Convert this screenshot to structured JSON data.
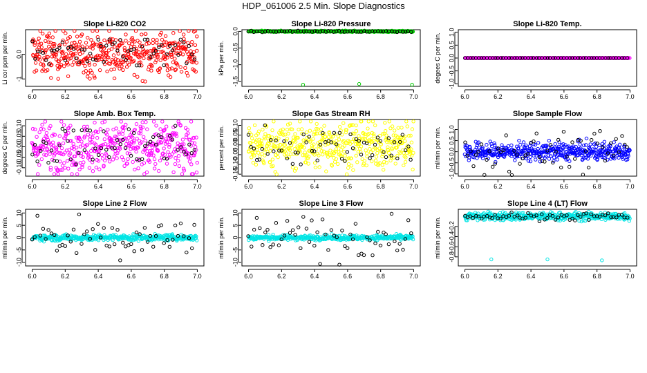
{
  "figure_title": "HDP_061006  2.5 Min. Slope Diagnostics",
  "chart_data": [
    {
      "type": "scatter",
      "title": "Slope Li-820 CO2",
      "ylabel": "Li cor ppm per min.",
      "xlim": [
        5.96,
        7.04
      ],
      "ylim": [
        -1.3,
        1.0
      ],
      "xticks": [
        6.0,
        6.2,
        6.4,
        6.6,
        6.8,
        7.0
      ],
      "yticks": [
        -1,
        0
      ],
      "ytick_labels": [
        "-1",
        "0.0"
      ],
      "series": [
        {
          "name": "main",
          "color": "#ff0000",
          "n": 460,
          "center": 0.05,
          "spread": 0.45,
          "range": [
            -1.25,
            0.95
          ]
        },
        {
          "name": "black",
          "color": "#000000",
          "n": 60,
          "center": 0.05,
          "spread": 0.35,
          "range": [
            -0.8,
            0.6
          ]
        }
      ]
    },
    {
      "type": "scatter",
      "title": "Slope Li-820 Pressure",
      "ylabel": "kPa per min.",
      "xlim": [
        5.96,
        7.04
      ],
      "ylim": [
        -1.65,
        0.05
      ],
      "xticks": [
        6.0,
        6.2,
        6.4,
        6.6,
        6.8,
        7.0
      ],
      "yticks": [
        -1.5,
        -1.0,
        -0.5,
        0.0
      ],
      "ytick_labels": [
        "-1.5",
        "-1.0",
        "-0.5",
        "0.0"
      ],
      "series": [
        {
          "name": "main",
          "color": "#00cc00",
          "n": 300,
          "center": 0.0,
          "spread": 0.01,
          "range": [
            -0.03,
            0.03
          ]
        },
        {
          "name": "black",
          "color": "#000000",
          "n": 60,
          "center": 0.0,
          "spread": 0.01,
          "range": [
            -0.03,
            0.03
          ]
        }
      ],
      "outliers": [
        {
          "x": 6.33,
          "y": -1.6,
          "color": "#00cc00"
        },
        {
          "x": 6.67,
          "y": -1.58,
          "color": "#00cc00"
        },
        {
          "x": 6.99,
          "y": -1.6,
          "color": "#00cc00"
        }
      ]
    },
    {
      "type": "scatter",
      "title": "Slope Li-820 Temp.",
      "ylabel": "degees C per min.",
      "xlim": [
        5.96,
        7.04
      ],
      "ylim": [
        -1.1,
        1.1
      ],
      "xticks": [
        6.0,
        6.2,
        6.4,
        6.6,
        6.8,
        7.0
      ],
      "yticks": [
        -1.0,
        -0.5,
        0.0,
        0.5,
        1.0
      ],
      "ytick_labels": [
        "-1.0",
        "-0.5",
        "0.0",
        "0.5",
        "1.0"
      ],
      "series": [
        {
          "name": "main",
          "color": "#ff00ff",
          "n": 300,
          "center": 0.0,
          "spread": 0.0,
          "range": [
            0,
            0
          ]
        },
        {
          "name": "black",
          "color": "#000000",
          "n": 60,
          "center": 0.0,
          "spread": 0.0,
          "range": [
            0,
            0
          ]
        }
      ]
    },
    {
      "type": "scatter",
      "title": "Slope Amb. Box Temp.",
      "ylabel": "degrees C per min.",
      "xlim": [
        5.96,
        7.04
      ],
      "ylim": [
        -0.14,
        0.13
      ],
      "xticks": [
        6.0,
        6.2,
        6.4,
        6.6,
        6.8,
        7.0
      ],
      "yticks": [
        -0.1,
        -0.05,
        0.0,
        0.05,
        0.1
      ],
      "ytick_labels": [
        "-0.10",
        "-0.05",
        "0.00",
        "0.05",
        "0.10"
      ],
      "series": [
        {
          "name": "main",
          "color": "#ff00ff",
          "n": 460,
          "center": 0.0,
          "spread": 0.06,
          "range": [
            -0.13,
            0.12
          ]
        },
        {
          "name": "black",
          "color": "#000000",
          "n": 60,
          "center": 0.0,
          "spread": 0.05,
          "range": [
            -0.12,
            0.1
          ]
        }
      ]
    },
    {
      "type": "scatter",
      "title": "Slope Gas Stream RH",
      "ylabel": "percent per min.",
      "xlim": [
        5.96,
        7.04
      ],
      "ylim": [
        -0.16,
        0.13
      ],
      "xticks": [
        6.0,
        6.2,
        6.4,
        6.6,
        6.8,
        7.0
      ],
      "yticks": [
        -0.15,
        -0.1,
        -0.05,
        0.0,
        0.05,
        0.1
      ],
      "ytick_labels": [
        "-0.15",
        "-0.10",
        "-0.05",
        "0.00",
        "0.05",
        "0.10"
      ],
      "series": [
        {
          "name": "main",
          "color": "#ffff00",
          "n": 460,
          "center": 0.0,
          "spread": 0.06,
          "range": [
            -0.15,
            0.12
          ]
        },
        {
          "name": "black",
          "color": "#000000",
          "n": 60,
          "center": 0.0,
          "spread": 0.05,
          "range": [
            -0.1,
            0.1
          ]
        }
      ]
    },
    {
      "type": "scatter",
      "title": "Slope Sample Flow",
      "ylabel": "ml/min per min.",
      "xlim": [
        5.96,
        7.04
      ],
      "ylim": [
        -1.1,
        1.45
      ],
      "xticks": [
        6.0,
        6.2,
        6.4,
        6.6,
        6.8,
        7.0
      ],
      "yticks": [
        -1.0,
        -0.5,
        0.0,
        0.5,
        1.0
      ],
      "ytick_labels": [
        "-1.0",
        "-0.5",
        "0.0",
        "0.5",
        "1.0"
      ],
      "series": [
        {
          "name": "main",
          "color": "#0000ff",
          "n": 460,
          "center": 0.0,
          "spread": 0.2,
          "range": [
            -1.0,
            1.3
          ]
        },
        {
          "name": "black",
          "color": "#000000",
          "n": 60,
          "center": 0.0,
          "spread": 0.45,
          "range": [
            -1.05,
            1.35
          ]
        }
      ]
    },
    {
      "type": "scatter",
      "title": "Slope Line 2 Flow",
      "ylabel": "ml/min per min.",
      "xlim": [
        5.96,
        7.04
      ],
      "ylim": [
        -11.5,
        11.5
      ],
      "xticks": [
        6.0,
        6.2,
        6.4,
        6.6,
        6.8,
        7.0
      ],
      "yticks": [
        -10,
        -5,
        0,
        5,
        10
      ],
      "ytick_labels": [
        "-10",
        "-5",
        "0",
        "5",
        "10"
      ],
      "series": [
        {
          "name": "main",
          "color": "#00e5e5",
          "n": 380,
          "center": 0.0,
          "spread": 0.6,
          "range": [
            -2,
            2
          ]
        },
        {
          "name": "black",
          "color": "#000000",
          "n": 60,
          "center": 0.0,
          "spread": 4.5,
          "range": [
            -11,
            10.5
          ]
        }
      ]
    },
    {
      "type": "scatter",
      "title": "Slope Line 3 Flow",
      "ylabel": "ml/min per min.",
      "xlim": [
        5.96,
        7.04
      ],
      "ylim": [
        -11.5,
        11.5
      ],
      "xticks": [
        6.0,
        6.2,
        6.4,
        6.6,
        6.8,
        7.0
      ],
      "yticks": [
        -10,
        -5,
        0,
        5,
        10
      ],
      "ytick_labels": [
        "-10",
        "-5",
        "0",
        "5",
        "10"
      ],
      "series": [
        {
          "name": "main",
          "color": "#00e5e5",
          "n": 380,
          "center": 0.0,
          "spread": 0.5,
          "range": [
            -1.5,
            1.5
          ]
        },
        {
          "name": "black",
          "color": "#000000",
          "n": 60,
          "center": 0.0,
          "spread": 4.5,
          "range": [
            -11,
            10.5
          ]
        }
      ]
    },
    {
      "type": "scatter",
      "title": "Slope Line 4 (LT) Flow",
      "ylabel": "ml/min per min.",
      "xlim": [
        5.96,
        7.04
      ],
      "ylim": [
        -0.98,
        0.14
      ],
      "xticks": [
        6.0,
        6.2,
        6.4,
        6.6,
        6.8,
        7.0
      ],
      "yticks": [
        -0.8,
        -0.6,
        -0.4,
        -0.2
      ],
      "ytick_labels": [
        "-0.8",
        "-0.6",
        "-0.4",
        "-0.2"
      ],
      "series": [
        {
          "name": "main",
          "color": "#00e5e5",
          "n": 420,
          "center": 0.0,
          "spread": 0.04,
          "range": [
            -0.1,
            0.1
          ]
        },
        {
          "name": "black",
          "color": "#000000",
          "n": 60,
          "center": 0.0,
          "spread": 0.04,
          "range": [
            -0.1,
            0.08
          ]
        }
      ],
      "outliers": [
        {
          "x": 6.16,
          "y": -0.85,
          "color": "#00e5e5"
        },
        {
          "x": 6.5,
          "y": -0.85,
          "color": "#00e5e5"
        },
        {
          "x": 6.83,
          "y": -0.87,
          "color": "#00e5e5"
        }
      ]
    }
  ]
}
